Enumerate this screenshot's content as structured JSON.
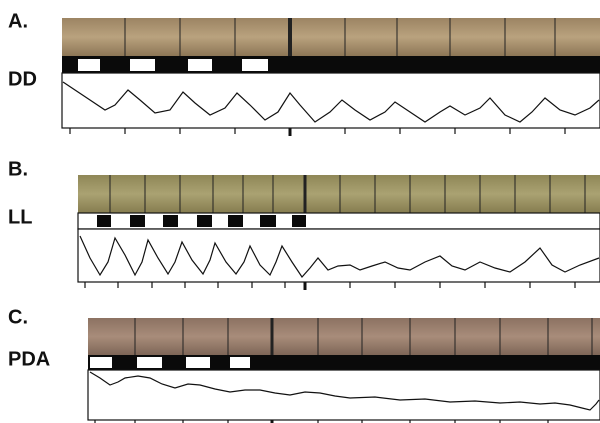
{
  "panels": [
    {
      "label": "A.",
      "condition": "DD"
    },
    {
      "label": "B.",
      "condition": "LL"
    },
    {
      "label": "C.",
      "condition": "PDA"
    }
  ]
}
